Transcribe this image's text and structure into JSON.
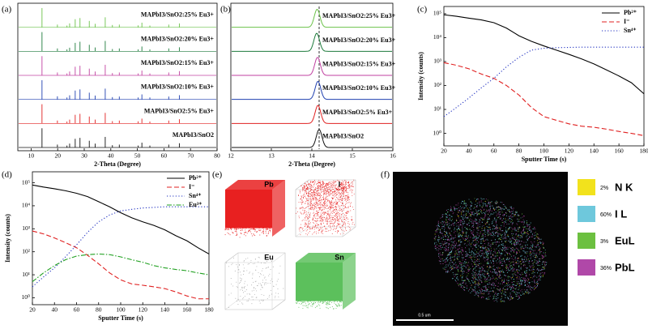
{
  "chart_data": [
    {
      "type": "stem",
      "panel_label": "(a)",
      "xlabel": "2-Theta (Degree)",
      "xlim": [
        5,
        80
      ],
      "xticks": [
        10,
        20,
        30,
        40,
        50,
        60,
        70,
        80
      ],
      "x": [
        14.1,
        19.9,
        23.5,
        24.5,
        26.6,
        28.4,
        31.9,
        34.1,
        37.9,
        40.6,
        43.2,
        50.3,
        51.7,
        54.7,
        61.8,
        65.8
      ],
      "series": [
        {
          "name": "MAPbI3/SnO2:25% Eu3+",
          "color": "#6cc24a",
          "values": [
            100,
            14,
            9,
            20,
            42,
            48,
            33,
            18,
            52,
            12,
            14,
            10,
            24,
            9,
            14,
            20
          ]
        },
        {
          "name": "MAPbI3/SnO2:20% Eu3+",
          "color": "#1e7b3c",
          "values": [
            100,
            15,
            10,
            19,
            44,
            50,
            34,
            20,
            54,
            12,
            15,
            10,
            25,
            10,
            15,
            21
          ]
        },
        {
          "name": "MAPbI3/SnO2:15% Eu3+",
          "color": "#c040a0",
          "values": [
            100,
            15,
            10,
            20,
            45,
            50,
            35,
            20,
            55,
            12,
            15,
            10,
            25,
            10,
            15,
            22
          ]
        },
        {
          "name": "MAPbI3/SnO2:10% Eu3+",
          "color": "#2040b0",
          "values": [
            100,
            16,
            10,
            21,
            46,
            52,
            35,
            20,
            56,
            12,
            15,
            10,
            26,
            10,
            15,
            22
          ]
        },
        {
          "name": "MAPbI3/SnO2:5% Eu3+",
          "color": "#e02020",
          "values": [
            100,
            15,
            10,
            20,
            45,
            50,
            36,
            20,
            55,
            12,
            15,
            11,
            25,
            10,
            15,
            22
          ]
        },
        {
          "name": "MAPbI3/SnO2",
          "color": "#111111",
          "values": [
            100,
            15,
            10,
            20,
            45,
            50,
            35,
            20,
            55,
            12,
            15,
            10,
            25,
            10,
            15,
            22
          ]
        }
      ]
    },
    {
      "type": "peak",
      "panel_label": "(b)",
      "xlabel": "2-Theta (Degree)",
      "xlim": [
        12,
        16
      ],
      "xticks": [
        12,
        13,
        14,
        15,
        16
      ],
      "reference_line": 14.18,
      "series": [
        {
          "name": "MAPbI3/SnO2:25% Eu3+",
          "color": "#6cc24a",
          "center": 14.13
        },
        {
          "name": "MAPbI3/SnO2:20% Eu3+",
          "color": "#1e7b3c",
          "center": 14.12
        },
        {
          "name": "MAPbI3/SnO2:15% Eu3+",
          "color": "#c040a0",
          "center": 14.14
        },
        {
          "name": "MAPbI3/SnO2:10% Eu3+",
          "color": "#2040b0",
          "center": 14.15
        },
        {
          "name": "MAPbI3/SnO2:5% Eu3+",
          "color": "#e02020",
          "center": 14.15
        },
        {
          "name": "MAPbI3/SnO2",
          "color": "#111111",
          "center": 14.18
        }
      ]
    },
    {
      "type": "line",
      "panel_label": "(c)",
      "xlabel": "Sputter Time (s)",
      "ylabel": "Intensity (counts)",
      "yscale": "log",
      "xlim": [
        20,
        180
      ],
      "xticks": [
        20,
        40,
        60,
        80,
        100,
        120,
        140,
        160,
        180
      ],
      "ylim": [
        0.3,
        200000
      ],
      "yticks": [
        {
          "value": 1,
          "label": "10⁰"
        },
        {
          "value": 10,
          "label": "10¹"
        },
        {
          "value": 100,
          "label": "10²"
        },
        {
          "value": 1000,
          "label": "10³"
        },
        {
          "value": 10000,
          "label": "10⁴"
        },
        {
          "value": 100000,
          "label": "10⁵"
        }
      ],
      "x": [
        20,
        30,
        40,
        50,
        60,
        70,
        80,
        90,
        100,
        110,
        120,
        130,
        140,
        150,
        160,
        170,
        180
      ],
      "series": [
        {
          "name": "Pb²⁺",
          "color": "#000000",
          "dash": "solid",
          "values": [
            90000,
            78000,
            65000,
            55000,
            42000,
            25000,
            12000,
            7000,
            4500,
            3000,
            2000,
            1300,
            800,
            450,
            250,
            130,
            45
          ]
        },
        {
          "name": "I⁻",
          "color": "#e02020",
          "dash": "dashed",
          "values": [
            900,
            700,
            500,
            300,
            200,
            100,
            40,
            12,
            5,
            3.5,
            2.5,
            2,
            1.8,
            1.5,
            1.2,
            1,
            0.8
          ]
        },
        {
          "name": "Sn⁴⁺",
          "color": "#2030c0",
          "dash": "dotted",
          "values": [
            5,
            12,
            30,
            80,
            200,
            600,
            1500,
            3000,
            3600,
            3800,
            3900,
            4000,
            4000,
            4000,
            4000,
            4000,
            4000
          ]
        }
      ]
    },
    {
      "type": "line",
      "panel_label": "(d)",
      "xlabel": "Sputter Time (s)",
      "ylabel": "Intensity (counts)",
      "yscale": "log",
      "xlim": [
        20,
        180
      ],
      "xticks": [
        20,
        40,
        60,
        80,
        100,
        120,
        140,
        160,
        180
      ],
      "ylim": [
        0.5,
        300000
      ],
      "yticks": [
        {
          "value": 1,
          "label": "10⁰"
        },
        {
          "value": 10,
          "label": "10¹"
        },
        {
          "value": 100,
          "label": "10²"
        },
        {
          "value": 1000,
          "label": "10³"
        },
        {
          "value": 10000,
          "label": "10⁴"
        },
        {
          "value": 100000,
          "label": "10⁵"
        }
      ],
      "x": [
        20,
        30,
        40,
        50,
        60,
        70,
        80,
        90,
        100,
        110,
        120,
        130,
        140,
        150,
        160,
        170,
        180
      ],
      "series": [
        {
          "name": "Pb²⁺",
          "color": "#000000",
          "dash": "solid",
          "values": [
            80000,
            65000,
            55000,
            45000,
            35000,
            25000,
            15000,
            9000,
            5000,
            3000,
            2000,
            1400,
            900,
            500,
            300,
            150,
            80
          ]
        },
        {
          "name": "I⁻",
          "color": "#e02020",
          "dash": "dashed",
          "values": [
            800,
            600,
            400,
            250,
            150,
            70,
            30,
            12,
            6,
            4,
            3.5,
            3,
            2.5,
            1.8,
            1.2,
            0.9,
            0.9
          ]
        },
        {
          "name": "Sn⁴⁺",
          "color": "#2030c0",
          "dash": "dotted",
          "values": [
            3,
            8,
            20,
            60,
            200,
            700,
            2000,
            4000,
            6000,
            7000,
            8000,
            8500,
            9000,
            9000,
            9000,
            9000,
            9000
          ]
        },
        {
          "name": "Eu³⁺",
          "color": "#20a020",
          "dash": "dashdot",
          "values": [
            5,
            12,
            25,
            45,
            65,
            75,
            80,
            75,
            60,
            45,
            35,
            25,
            20,
            17,
            15,
            12,
            10
          ]
        }
      ]
    }
  ],
  "panel_e": {
    "panel_label": "(e)",
    "cubes": [
      {
        "label": "Pb",
        "color": "#e82020",
        "filled": true
      },
      {
        "label": "I",
        "color": "#e82020",
        "filled": false
      },
      {
        "label": "Eu",
        "color": "#999999",
        "filled": false
      },
      {
        "label": "Sn",
        "color": "#5cc05c",
        "filled": true
      }
    ]
  },
  "panel_f": {
    "panel_label": "(f)",
    "scale_bar": "0.5 um",
    "legend": [
      {
        "percent": "2%",
        "label": "N K",
        "color": "#f2e21c"
      },
      {
        "percent": "60%",
        "label": "I L",
        "color": "#6ec8dc"
      },
      {
        "percent": "3%",
        "label": "EuL",
        "color": "#6cc040"
      },
      {
        "percent": "36%",
        "label": "PbL",
        "color": "#b048a8"
      }
    ]
  }
}
